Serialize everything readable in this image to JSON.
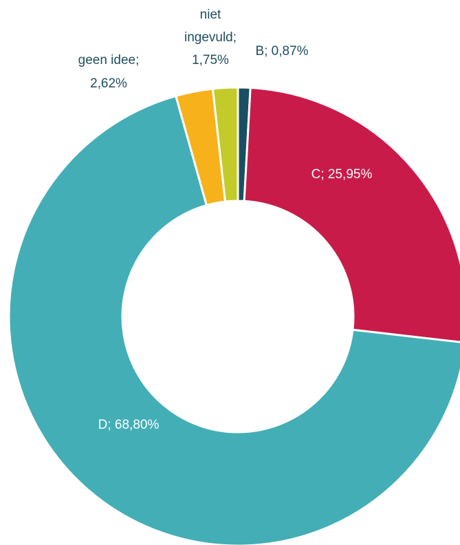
{
  "chart_data": {
    "type": "donut",
    "categories": [
      "B",
      "C",
      "D",
      "geen idee",
      "niet ingevuld"
    ],
    "values": [
      0.87,
      25.95,
      68.8,
      2.62,
      1.75
    ],
    "value_labels": [
      [
        "B; 0,87%"
      ],
      [
        "C; 25,95%"
      ],
      [
        "D; 68,80%"
      ],
      [
        "geen idee;",
        "2,62%"
      ],
      [
        "niet",
        "ingevuld;",
        "1,75%"
      ]
    ],
    "colors": [
      "#1a4f63",
      "#c91b4a",
      "#43aeb6",
      "#f7b11b",
      "#c3cb2a"
    ]
  }
}
